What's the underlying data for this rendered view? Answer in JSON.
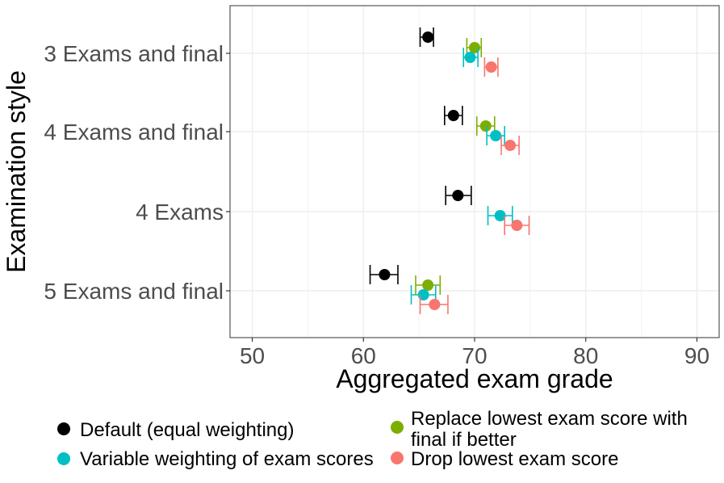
{
  "chart_data": {
    "type": "scatter",
    "subtype": "point-with-horizontal-error-bars",
    "title": "",
    "xlabel": "Aggregated exam grade",
    "ylabel": "Examination style",
    "xlim": [
      48,
      92
    ],
    "x_ticks": [
      50,
      60,
      70,
      80,
      90
    ],
    "grid": true,
    "categories": [
      "3 Exams and final",
      "4 Exams and final",
      "4 Exams",
      "5 Exams and final"
    ],
    "series": [
      {
        "name": "Default (equal weighting)",
        "color": "#000000",
        "points": [
          {
            "category": "3 Exams and final",
            "value": 65.8,
            "low": 65.1,
            "high": 66.3
          },
          {
            "category": "4 Exams and final",
            "value": 68.1,
            "low": 67.3,
            "high": 68.9
          },
          {
            "category": "4 Exams",
            "value": 68.5,
            "low": 67.4,
            "high": 69.7
          },
          {
            "category": "5 Exams and final",
            "value": 61.9,
            "low": 60.6,
            "high": 63.1
          }
        ]
      },
      {
        "name": "Replace lowest exam score with final if better",
        "label_lines": [
          "Replace lowest exam score with",
          "final if better"
        ],
        "color": "#7CAE00",
        "points": [
          {
            "category": "3 Exams and final",
            "value": 70.0,
            "low": 69.3,
            "high": 70.6
          },
          {
            "category": "4 Exams and final",
            "value": 71.0,
            "low": 70.2,
            "high": 71.8
          },
          {
            "category": "5 Exams and final",
            "value": 65.8,
            "low": 64.7,
            "high": 66.9
          }
        ]
      },
      {
        "name": "Variable weighting of exam scores",
        "color": "#00BFC4",
        "points": [
          {
            "category": "3 Exams and final",
            "value": 69.6,
            "low": 69.0,
            "high": 70.3
          },
          {
            "category": "4 Exams and final",
            "value": 71.9,
            "low": 71.1,
            "high": 72.7
          },
          {
            "category": "4 Exams",
            "value": 72.3,
            "low": 71.2,
            "high": 73.4
          },
          {
            "category": "5 Exams and final",
            "value": 65.4,
            "low": 64.3,
            "high": 66.5
          }
        ]
      },
      {
        "name": "Drop lowest exam score",
        "color": "#F8766D",
        "points": [
          {
            "category": "3 Exams and final",
            "value": 71.5,
            "low": 70.9,
            "high": 72.1
          },
          {
            "category": "4 Exams and final",
            "value": 73.2,
            "low": 72.4,
            "high": 74.0
          },
          {
            "category": "4 Exams",
            "value": 73.8,
            "low": 72.7,
            "high": 74.9
          },
          {
            "category": "5 Exams and final",
            "value": 66.4,
            "low": 65.1,
            "high": 67.6
          }
        ]
      }
    ],
    "legend": {
      "placement": "bottom",
      "order": [
        "Default (equal weighting)",
        "Replace lowest exam score with final if better",
        "Variable weighting of exam scores",
        "Drop lowest exam score"
      ]
    }
  }
}
